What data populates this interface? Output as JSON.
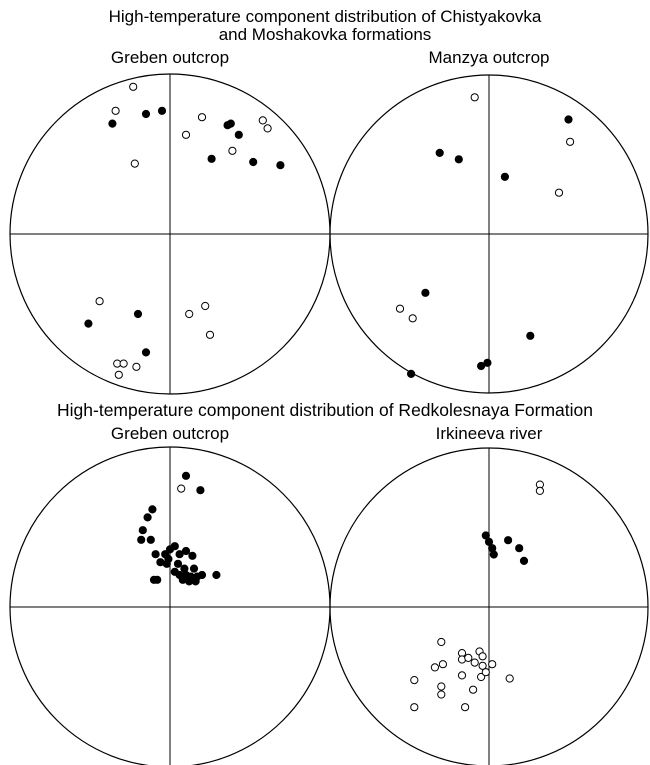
{
  "section1": {
    "title_line1": "High-temperature component distribution of Chistyakovka",
    "title_line2": "and Moshakovka formations"
  },
  "section2": {
    "title": "High-temperature component distribution of Redkolesnaya Formation"
  },
  "colors": {
    "line": "#000000",
    "filled": "#000000",
    "open_fill": "#ffffff"
  },
  "chart_data": [
    {
      "type": "scatter",
      "title": "Greben outcrop",
      "section": "section1",
      "coordinate_system": "equal-area stereonet (normalized projection, x right, y up, radius 1)",
      "series": [
        {
          "marker": "filled-circle",
          "points": [
            [
              -0.36,
              0.69
            ],
            [
              -0.15,
              0.75
            ],
            [
              -0.05,
              0.77
            ],
            [
              0.36,
              0.68
            ],
            [
              0.43,
              0.62
            ],
            [
              0.38,
              0.69
            ],
            [
              0.26,
              0.47
            ],
            [
              0.52,
              0.45
            ],
            [
              0.69,
              0.43
            ],
            [
              -0.51,
              -0.56
            ],
            [
              -0.2,
              -0.5
            ],
            [
              -0.15,
              -0.74
            ]
          ]
        },
        {
          "marker": "open-circle",
          "points": [
            [
              -0.34,
              0.77
            ],
            [
              -0.23,
              0.92
            ],
            [
              0.1,
              0.62
            ],
            [
              0.2,
              0.73
            ],
            [
              0.39,
              0.52
            ],
            [
              0.58,
              0.71
            ],
            [
              0.61,
              0.66
            ],
            [
              -0.22,
              0.44
            ],
            [
              -0.44,
              -0.42
            ],
            [
              0.12,
              -0.5
            ],
            [
              0.22,
              -0.45
            ],
            [
              0.25,
              -0.63
            ],
            [
              -0.33,
              -0.81
            ],
            [
              -0.29,
              -0.81
            ],
            [
              -0.21,
              -0.83
            ],
            [
              -0.32,
              -0.88
            ]
          ]
        }
      ]
    },
    {
      "type": "scatter",
      "title": "Manzya outcrop",
      "section": "section1",
      "coordinate_system": "equal-area stereonet (normalized projection, x right, y up, radius 1)",
      "series": [
        {
          "marker": "filled-circle",
          "points": [
            [
              -0.31,
              0.51
            ],
            [
              -0.19,
              0.47
            ],
            [
              0.1,
              0.36
            ],
            [
              0.5,
              0.72
            ],
            [
              -0.4,
              -0.37
            ],
            [
              0.26,
              -0.64
            ],
            [
              -0.05,
              -0.83
            ],
            [
              -0.01,
              -0.81
            ],
            [
              -0.49,
              -0.88
            ]
          ]
        },
        {
          "marker": "open-circle",
          "points": [
            [
              -0.09,
              0.86
            ],
            [
              0.51,
              0.58
            ],
            [
              0.44,
              0.26
            ],
            [
              -0.56,
              -0.47
            ],
            [
              -0.48,
              -0.53
            ]
          ]
        }
      ]
    },
    {
      "type": "scatter",
      "title": "Greben outcrop",
      "section": "section2",
      "coordinate_system": "equal-area stereonet (normalized projection, x right, y up, radius 1)",
      "series": [
        {
          "marker": "filled-circle",
          "points": [
            [
              -0.11,
              0.61
            ],
            [
              -0.14,
              0.56
            ],
            [
              -0.17,
              0.48
            ],
            [
              -0.12,
              0.42
            ],
            [
              -0.18,
              0.42
            ],
            [
              -0.09,
              0.33
            ],
            [
              -0.03,
              0.33
            ],
            [
              0.1,
              0.82
            ],
            [
              0.03,
              0.38
            ],
            [
              0.06,
              0.33
            ],
            [
              0.0,
              0.36
            ],
            [
              0.1,
              0.35
            ],
            [
              0.14,
              0.32
            ],
            [
              0.05,
              0.27
            ],
            [
              -0.02,
              0.27
            ],
            [
              0.09,
              0.24
            ],
            [
              0.15,
              0.24
            ],
            [
              0.03,
              0.22
            ],
            [
              0.1,
              0.2
            ],
            [
              0.13,
              0.19
            ],
            [
              0.17,
              0.19
            ],
            [
              0.2,
              0.2
            ],
            [
              0.08,
              0.17
            ],
            [
              0.12,
              0.16
            ],
            [
              0.16,
              0.16
            ],
            [
              0.06,
              0.2
            ],
            [
              -0.06,
              0.28
            ],
            [
              -0.1,
              0.17
            ],
            [
              -0.08,
              0.17
            ],
            [
              0.19,
              0.73
            ],
            [
              0.29,
              0.2
            ],
            [
              -0.01,
              0.3
            ]
          ]
        },
        {
          "marker": "open-circle",
          "points": [
            [
              0.07,
              0.74
            ]
          ]
        }
      ]
    },
    {
      "type": "scatter",
      "title": "Irkineeva river",
      "section": "section2",
      "coordinate_system": "equal-area stereonet (normalized projection, x right, y up, radius 1)",
      "series": [
        {
          "marker": "filled-circle",
          "points": [
            [
              -0.02,
              0.45
            ],
            [
              0.0,
              0.41
            ],
            [
              0.02,
              0.37
            ],
            [
              0.12,
              0.42
            ],
            [
              0.19,
              0.37
            ],
            [
              0.03,
              0.33
            ],
            [
              0.22,
              0.29
            ]
          ]
        },
        {
          "marker": "open-circle",
          "points": [
            [
              0.32,
              0.77
            ],
            [
              0.32,
              0.73
            ],
            [
              -0.3,
              -0.22
            ],
            [
              -0.34,
              -0.38
            ],
            [
              -0.29,
              -0.36
            ],
            [
              -0.17,
              -0.29
            ],
            [
              -0.17,
              -0.33
            ],
            [
              -0.13,
              -0.32
            ],
            [
              -0.06,
              -0.28
            ],
            [
              -0.04,
              -0.31
            ],
            [
              -0.04,
              -0.37
            ],
            [
              -0.09,
              -0.35
            ],
            [
              -0.17,
              -0.43
            ],
            [
              -0.05,
              -0.44
            ],
            [
              -0.02,
              -0.41
            ],
            [
              0.02,
              -0.36
            ],
            [
              0.13,
              -0.45
            ],
            [
              -0.47,
              -0.46
            ],
            [
              -0.3,
              -0.5
            ],
            [
              -0.3,
              -0.55
            ],
            [
              -0.1,
              -0.52
            ],
            [
              -0.15,
              -0.63
            ],
            [
              -0.47,
              -0.63
            ]
          ]
        }
      ]
    }
  ]
}
